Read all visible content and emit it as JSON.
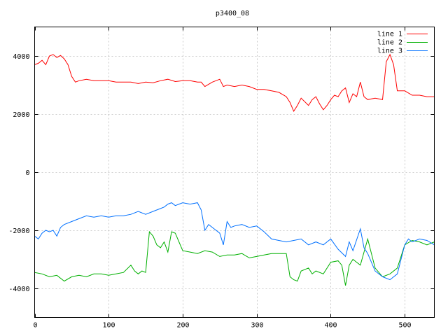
{
  "chart_data": {
    "type": "line",
    "title": "p3400_08",
    "xlabel": "",
    "ylabel": "",
    "xlim": [
      0,
      540
    ],
    "ylim": [
      -5000,
      5000
    ],
    "xticks": [
      0,
      100,
      200,
      300,
      400,
      500
    ],
    "yticks": [
      -4000,
      -2000,
      0,
      2000,
      4000
    ],
    "grid": true,
    "legend_position": "top-right",
    "series": [
      {
        "name": "line 1",
        "color": "#ff0000",
        "x": [
          0,
          5,
          10,
          15,
          20,
          25,
          30,
          35,
          40,
          45,
          50,
          55,
          60,
          70,
          80,
          90,
          100,
          110,
          120,
          130,
          140,
          150,
          160,
          170,
          180,
          190,
          200,
          210,
          220,
          225,
          230,
          240,
          250,
          255,
          260,
          270,
          280,
          290,
          300,
          310,
          320,
          330,
          340,
          345,
          350,
          355,
          360,
          370,
          375,
          380,
          385,
          390,
          395,
          400,
          405,
          410,
          415,
          420,
          425,
          430,
          435,
          440,
          445,
          450,
          460,
          470,
          475,
          480,
          485,
          490,
          500,
          510,
          520,
          530,
          540
        ],
        "y": [
          3700,
          3750,
          3850,
          3700,
          4000,
          4050,
          3950,
          4020,
          3900,
          3700,
          3300,
          3100,
          3150,
          3200,
          3150,
          3150,
          3150,
          3100,
          3100,
          3100,
          3050,
          3100,
          3080,
          3150,
          3200,
          3120,
          3150,
          3150,
          3100,
          3100,
          2950,
          3100,
          3200,
          2950,
          3000,
          2950,
          3000,
          2950,
          2850,
          2850,
          2800,
          2750,
          2600,
          2400,
          2100,
          2300,
          2550,
          2300,
          2500,
          2600,
          2350,
          2150,
          2300,
          2500,
          2650,
          2600,
          2800,
          2900,
          2400,
          2700,
          2600,
          3100,
          2600,
          2500,
          2550,
          2500,
          3800,
          4050,
          3700,
          2800,
          2800,
          2650,
          2650,
          2600,
          2600
        ]
      },
      {
        "name": "line 2",
        "color": "#00b000",
        "x": [
          0,
          10,
          20,
          30,
          40,
          50,
          60,
          70,
          80,
          90,
          100,
          110,
          120,
          130,
          135,
          140,
          145,
          150,
          155,
          160,
          165,
          170,
          175,
          180,
          185,
          190,
          200,
          210,
          220,
          230,
          240,
          250,
          260,
          270,
          280,
          290,
          300,
          310,
          320,
          340,
          345,
          350,
          355,
          360,
          370,
          375,
          380,
          390,
          400,
          410,
          415,
          420,
          425,
          430,
          440,
          450,
          460,
          470,
          480,
          490,
          500,
          510,
          520,
          530,
          540
        ],
        "y": [
          -3450,
          -3500,
          -3600,
          -3550,
          -3750,
          -3600,
          -3550,
          -3600,
          -3500,
          -3500,
          -3550,
          -3500,
          -3450,
          -3200,
          -3400,
          -3500,
          -3400,
          -3450,
          -2050,
          -2200,
          -2500,
          -2600,
          -2400,
          -2750,
          -2050,
          -2100,
          -2700,
          -2750,
          -2800,
          -2700,
          -2750,
          -2900,
          -2850,
          -2850,
          -2800,
          -2950,
          -2900,
          -2850,
          -2800,
          -2800,
          -3600,
          -3700,
          -3750,
          -3400,
          -3300,
          -3500,
          -3400,
          -3500,
          -3100,
          -3050,
          -3200,
          -3900,
          -3200,
          -3000,
          -3200,
          -2300,
          -3300,
          -3600,
          -3500,
          -3300,
          -2500,
          -2350,
          -2400,
          -2500,
          -2400
        ]
      },
      {
        "name": "line 3",
        "color": "#0070ff",
        "x": [
          0,
          5,
          10,
          15,
          20,
          25,
          30,
          35,
          40,
          50,
          60,
          70,
          80,
          90,
          100,
          110,
          120,
          130,
          140,
          150,
          160,
          170,
          175,
          180,
          185,
          190,
          200,
          210,
          220,
          225,
          230,
          235,
          240,
          250,
          255,
          260,
          265,
          270,
          280,
          290,
          300,
          310,
          320,
          330,
          340,
          350,
          360,
          370,
          380,
          390,
          400,
          410,
          420,
          425,
          430,
          440,
          445,
          450,
          460,
          470,
          480,
          490,
          500,
          505,
          510,
          520,
          530,
          540
        ],
        "y": [
          -2200,
          -2300,
          -2100,
          -2000,
          -2050,
          -2000,
          -2200,
          -1900,
          -1800,
          -1700,
          -1600,
          -1500,
          -1550,
          -1500,
          -1550,
          -1500,
          -1500,
          -1450,
          -1350,
          -1450,
          -1350,
          -1250,
          -1200,
          -1100,
          -1050,
          -1150,
          -1050,
          -1100,
          -1050,
          -1300,
          -2000,
          -1800,
          -1900,
          -2100,
          -2500,
          -1700,
          -1900,
          -1850,
          -1800,
          -1900,
          -1850,
          -2050,
          -2300,
          -2350,
          -2400,
          -2350,
          -2300,
          -2500,
          -2400,
          -2500,
          -2300,
          -2650,
          -2900,
          -2400,
          -2700,
          -1950,
          -2600,
          -2800,
          -3400,
          -3600,
          -3700,
          -3500,
          -2500,
          -2300,
          -2400,
          -2300,
          -2350,
          -2500
        ]
      }
    ]
  }
}
